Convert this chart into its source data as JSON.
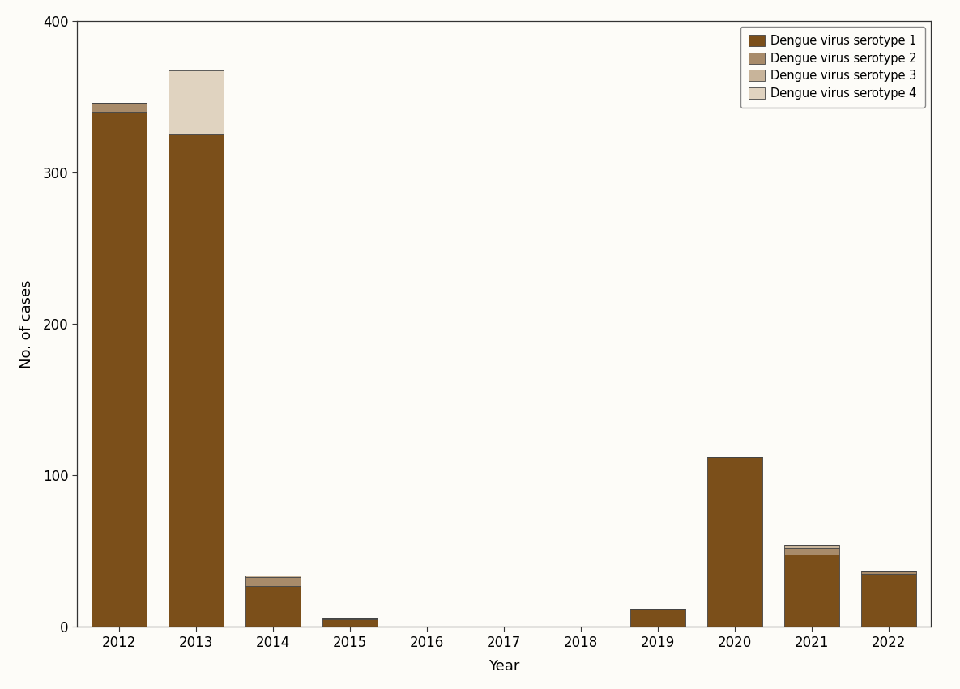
{
  "years": [
    2012,
    2013,
    2014,
    2015,
    2016,
    2017,
    2018,
    2019,
    2020,
    2021,
    2022
  ],
  "serotype1": [
    340,
    325,
    27,
    5,
    0,
    0,
    0,
    12,
    112,
    48,
    35
  ],
  "serotype2": [
    6,
    0,
    6,
    1,
    0,
    0,
    0,
    0,
    0,
    4,
    2
  ],
  "serotype3": [
    0,
    0,
    1,
    0,
    0,
    0,
    0,
    0,
    0,
    2,
    0
  ],
  "serotype4": [
    0,
    42,
    0,
    0,
    0,
    0,
    0,
    0,
    0,
    0,
    0
  ],
  "color1": "#7B4F1A",
  "color2": "#A88B6A",
  "color3": "#C8B49A",
  "color4": "#E0D3C0",
  "xlabel": "Year",
  "ylabel": "No. of cases",
  "ylim": [
    0,
    400
  ],
  "yticks": [
    0,
    100,
    200,
    300,
    400
  ],
  "legend_labels": [
    "Dengue virus serotype 1",
    "Dengue virus serotype 2",
    "Dengue virus serotype 3",
    "Dengue virus serotype 4"
  ],
  "background_color": "#FDFCF8",
  "edgecolor": "#444444"
}
